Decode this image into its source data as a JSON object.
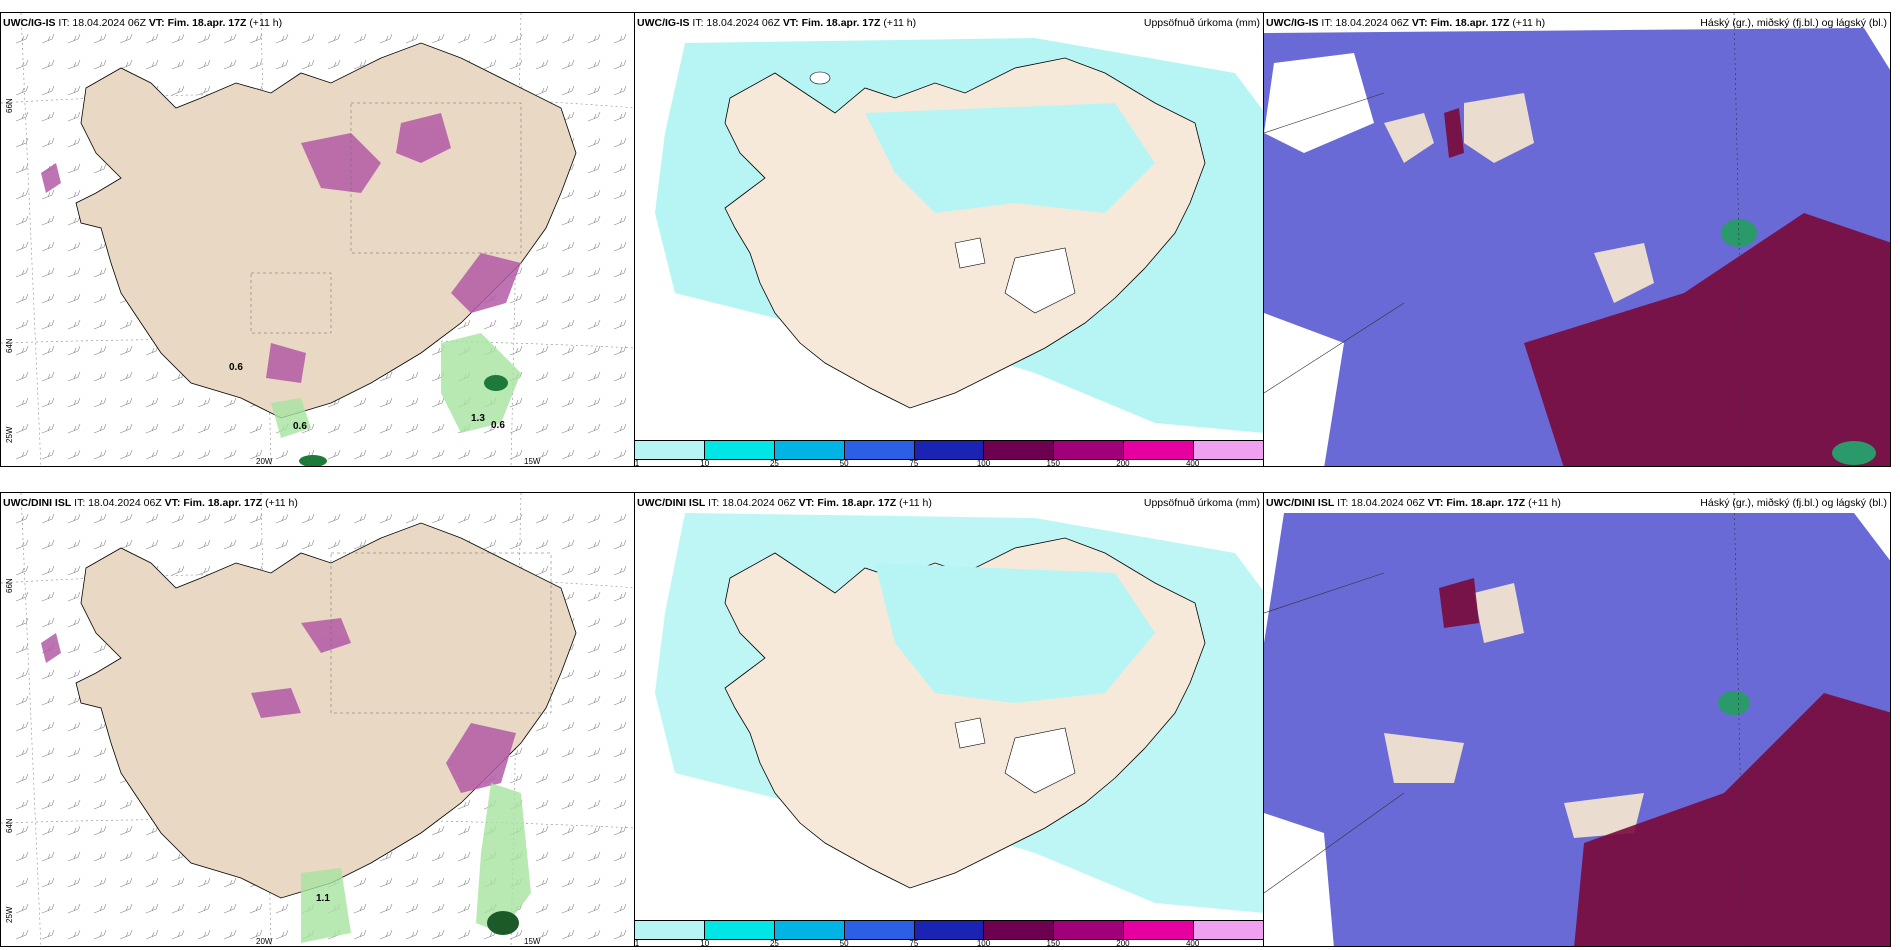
{
  "panels": {
    "top_left": {
      "model": "UWC/IG-IS",
      "it": "IT: 18.04.2024 06Z",
      "vt_label": "VT:",
      "vt": "Fim. 18.apr. 17Z",
      "lead": "(+11 h)",
      "right": ""
    },
    "top_mid": {
      "model": "UWC/IG-IS",
      "it": "IT: 18.04.2024 06Z",
      "vt_label": "VT:",
      "vt": "Fim. 18.apr. 17Z",
      "lead": "(+11 h)",
      "right": "Uppsöfnuð úrkoma (mm)"
    },
    "top_right": {
      "model": "UWC/IG-IS",
      "it": "IT: 18.04.2024 06Z",
      "vt_label": "VT:",
      "vt": "Fim. 18.apr. 17Z",
      "lead": "(+11 h)",
      "right": "Háský (gr.), miðský (fj.bl.) og lágský (bl.)"
    },
    "bot_left": {
      "model": "UWC/DINI ISL",
      "it": "IT: 18.04.2024 06Z",
      "vt_label": "VT:",
      "vt": "Fim. 18.apr. 17Z",
      "lead": "(+11 h)",
      "right": ""
    },
    "bot_mid": {
      "model": "UWC/DINI ISL",
      "it": "IT: 18.04.2024 06Z",
      "vt_label": "VT:",
      "vt": "Fim. 18.apr. 17Z",
      "lead": "(+11 h)",
      "right": "Uppsöfnuð úrkoma (mm)"
    },
    "bot_right": {
      "model": "UWC/DINI ISL",
      "it": "IT: 18.04.2024 06Z",
      "vt_label": "VT:",
      "vt": "Fim. 18.apr. 17Z",
      "lead": "(+11 h)",
      "right": "Háský (gr.), miðský (fj.bl.) og lágský (bl.)"
    }
  },
  "axis_labels": {
    "lat66": "66N",
    "lat64": "64N",
    "lon25": "25W",
    "lon20": "20W",
    "lon15": "15W"
  },
  "colorbar": {
    "ticks": [
      "1",
      "10",
      "25",
      "50",
      "75",
      "100",
      "150",
      "200",
      "400"
    ],
    "colors": [
      "#b7f5f5",
      "#00e6e6",
      "#00b4e6",
      "#2a5fe6",
      "#1b23b3",
      "#6e0050",
      "#a0007a",
      "#e600a0",
      "#f0a0f0"
    ]
  },
  "annotations": {
    "tl_a": "0.6",
    "tl_b": "0.6",
    "tl_c": "0.6",
    "tl_d": "1.3",
    "bl_a": "1.1"
  }
}
